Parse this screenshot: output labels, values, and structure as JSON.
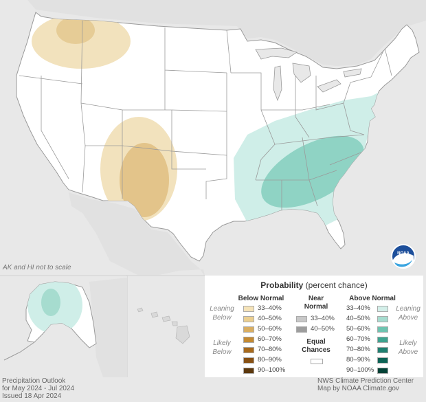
{
  "map": {
    "note": "AK and HI not to scale",
    "colors": {
      "background": "#e8e8e8",
      "land": "#ffffff",
      "border": "#9a9a9a",
      "below_33_40": "#f2e2bd",
      "below_40_50": "#e3c48a",
      "above_33_40": "#cfeee8",
      "above_40_50": "#8fd3c4"
    },
    "logo": "noaa-logo"
  },
  "legend": {
    "title_bold": "Probability",
    "title_rest": "(percent chance)",
    "below_header": "Below Normal",
    "near_header": "Near Normal",
    "above_header": "Above Normal",
    "equal_header": "Equal Chances",
    "leaning_below": "Leaning Below",
    "likely_below": "Likely Below",
    "leaning_above": "Leaning Above",
    "likely_above": "Likely Above",
    "below_ranges": [
      "33–40%",
      "40–50%",
      "50–60%",
      "60–70%",
      "70–80%",
      "80–90%",
      "90–100%"
    ],
    "below_colors": [
      "#f5e3b8",
      "#ebcf90",
      "#d9ae62",
      "#c48a32",
      "#a86a1c",
      "#875013",
      "#5c380d"
    ],
    "near_ranges": [
      "33–40%",
      "40–50%"
    ],
    "near_colors": [
      "#c8c8c8",
      "#9d9d9d"
    ],
    "above_ranges": [
      "33–40%",
      "40–50%",
      "50–60%",
      "60–70%",
      "70–80%",
      "80–90%",
      "90–100%"
    ],
    "above_colors": [
      "#d3efe9",
      "#a6dccf",
      "#6ec3b0",
      "#3ea38f",
      "#1f8070",
      "#0d6355",
      "#034236"
    ]
  },
  "footer": {
    "left1": "Precipitation Outlook",
    "left2": "for May 2024 - Jul 2024",
    "left3": "Issued 18 Apr 2024",
    "right1": "NWS Climate Prediction Center",
    "right2": "Map by NOAA Climate.gov"
  }
}
